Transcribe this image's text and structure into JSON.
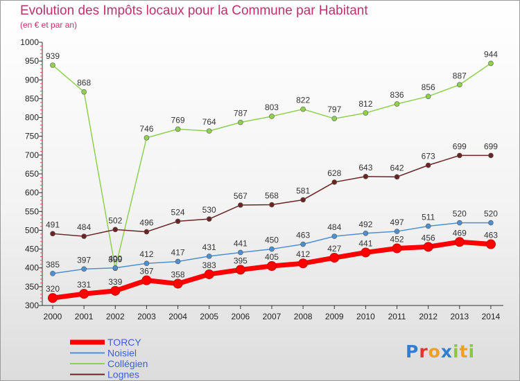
{
  "chart_data": {
    "type": "line",
    "title": "Evolution des Impôts locaux pour la Commune par Habitant",
    "subtitle": "(en € et par an)",
    "x": [
      "2000",
      "2001",
      "2002",
      "2003",
      "2004",
      "2005",
      "2006",
      "2007",
      "2008",
      "2009",
      "2010",
      "2011",
      "2012",
      "2013",
      "2014"
    ],
    "ylim": [
      300,
      1000
    ],
    "yticks": [
      300,
      350,
      400,
      450,
      500,
      550,
      600,
      650,
      700,
      750,
      800,
      850,
      900,
      950,
      1000
    ],
    "grid": false,
    "legend_position": "bottom-left",
    "series": [
      {
        "name": "TORCY",
        "color": "#ff0000",
        "values": [
          320,
          331,
          339,
          367,
          358,
          383,
          395,
          405,
          412,
          427,
          441,
          452,
          456,
          469,
          463
        ]
      },
      {
        "name": "Noisiel",
        "color": "#4d8fd1",
        "values": [
          385,
          397,
          400,
          412,
          417,
          431,
          441,
          450,
          463,
          484,
          492,
          497,
          511,
          520,
          520
        ]
      },
      {
        "name": "Collégien",
        "color": "#8fd14f",
        "values": [
          939,
          868,
          399,
          746,
          769,
          764,
          787,
          803,
          822,
          797,
          812,
          836,
          856,
          887,
          944
        ]
      },
      {
        "name": "Lognes",
        "color": "#6b2424",
        "values": [
          491,
          484,
          502,
          496,
          524,
          530,
          567,
          568,
          581,
          628,
          643,
          642,
          673,
          699,
          699
        ]
      }
    ]
  },
  "logo": {
    "letters": [
      {
        "ch": "P",
        "color": "#2f7fd1"
      },
      {
        "ch": "r",
        "color": "#e8322b"
      },
      {
        "ch": "o",
        "color": "#f0a020"
      },
      {
        "ch": "x",
        "color": "#2f7fd1"
      },
      {
        "ch": "i",
        "color": "#8cc63f"
      },
      {
        "ch": "t",
        "color": "#f0a020"
      },
      {
        "ch": "i",
        "color": "#8cc63f"
      }
    ]
  }
}
